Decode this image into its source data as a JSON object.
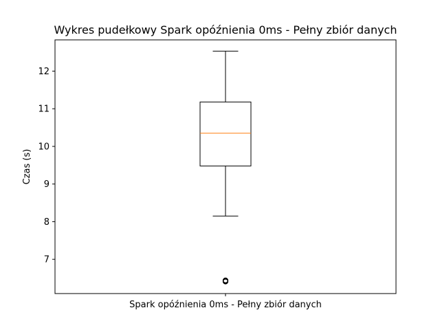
{
  "chart_data": {
    "type": "box",
    "title": "Wykres pudełkowy Spark opóźnienia 0ms - Pełny zbiór danych",
    "xlabel": "",
    "ylabel": "Czas (s)",
    "categories": [
      "Spark opóźnienia 0ms - Pełny zbiór danych"
    ],
    "boxes": [
      {
        "name": "Spark opóźnienia 0ms - Pełny zbiór danych",
        "whisker_low": 8.15,
        "q1": 9.48,
        "median": 10.35,
        "q3": 11.18,
        "whisker_high": 12.53,
        "outliers": [
          6.41,
          6.43,
          6.44,
          6.42
        ]
      }
    ],
    "ylim": [
      6.09,
      12.83
    ],
    "yticks": [
      7,
      8,
      9,
      10,
      11,
      12
    ],
    "grid": false,
    "colors": {
      "box": "#000000",
      "median": "#ff7f0e",
      "whisker": "#000000",
      "outlier": "#000000"
    }
  }
}
